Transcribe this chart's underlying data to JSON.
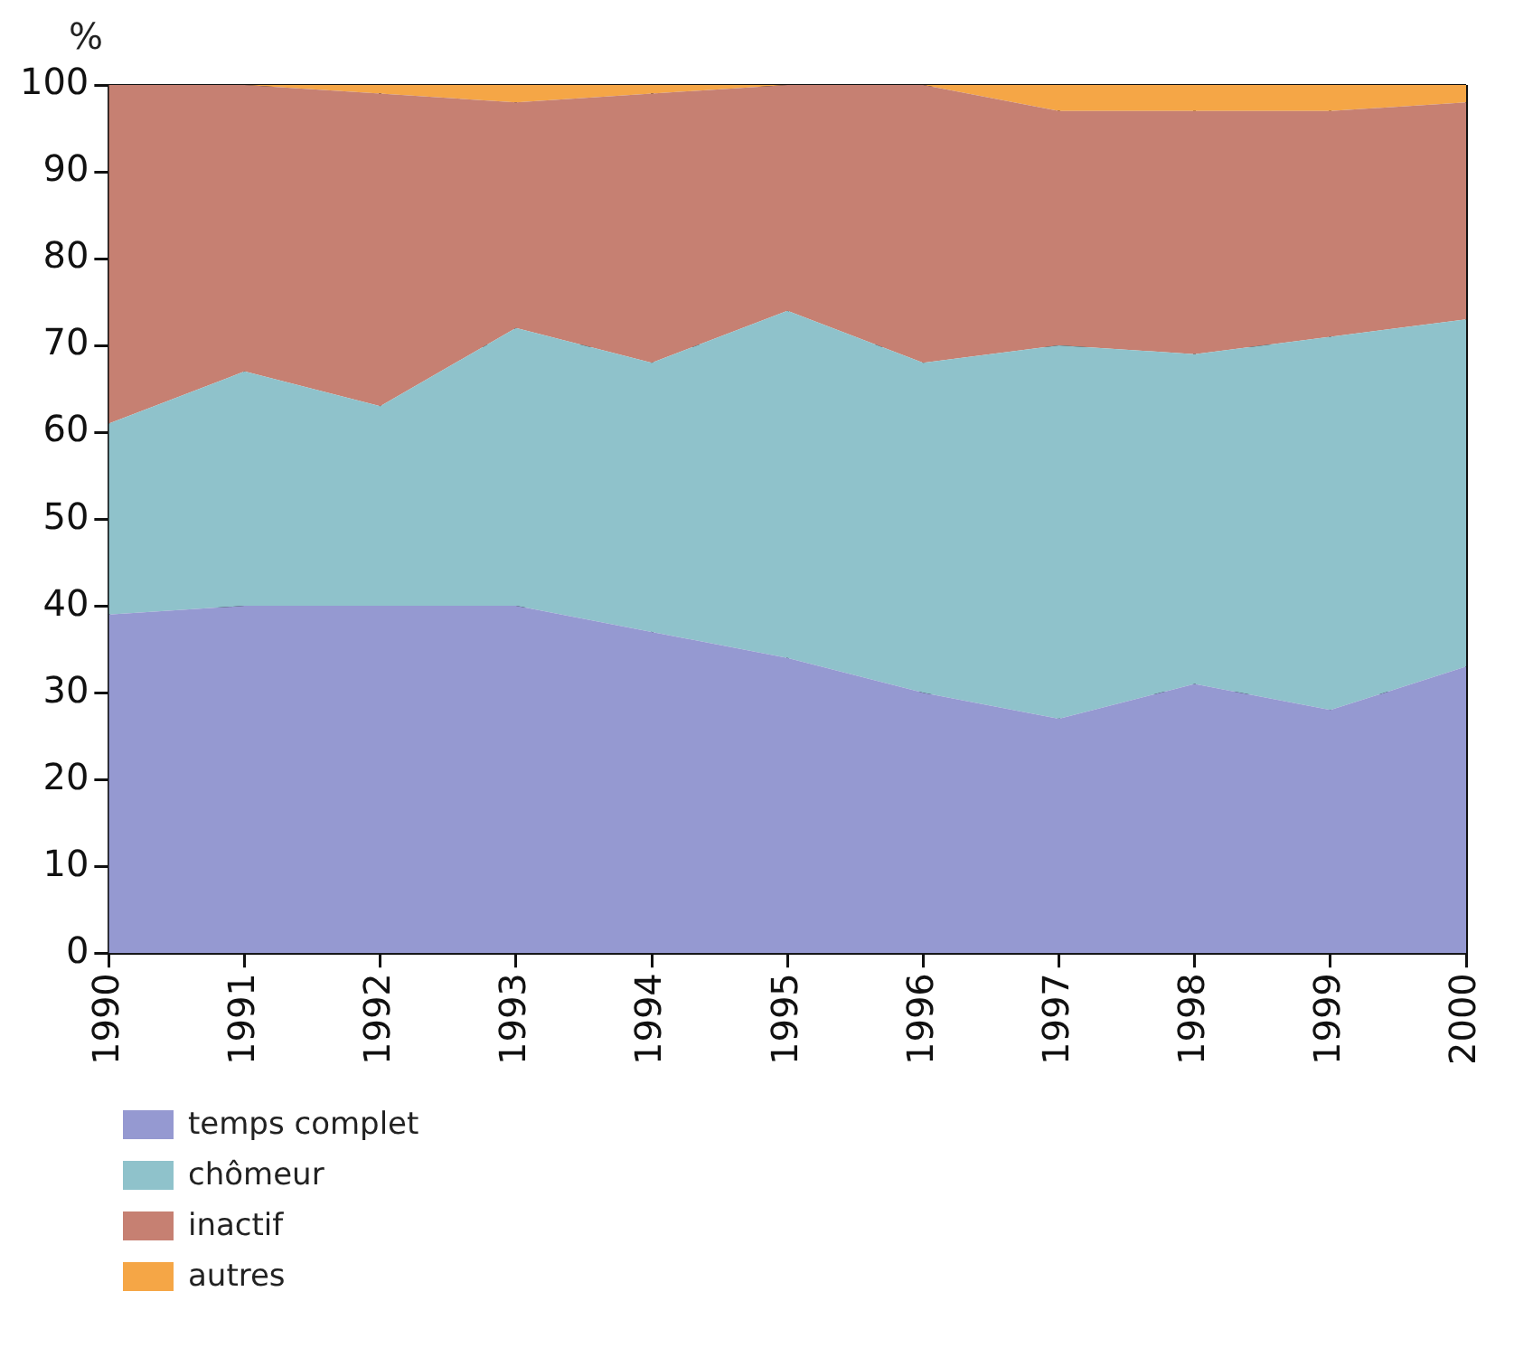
{
  "chart_data": {
    "type": "area",
    "stacked": true,
    "ylabel": "%",
    "categories": [
      "1990",
      "1991",
      "1992",
      "1993",
      "1994",
      "1995",
      "1996",
      "1997",
      "1998",
      "1999",
      "2000"
    ],
    "series": [
      {
        "name": "temps complet",
        "color": "#9599d1",
        "values": [
          39,
          40,
          40,
          40,
          37,
          34,
          30,
          27,
          31,
          28,
          33
        ]
      },
      {
        "name": "chômeur",
        "color": "#8fc2cb",
        "values": [
          22,
          27,
          23,
          32,
          31,
          40,
          38,
          43,
          38,
          43,
          40
        ]
      },
      {
        "name": "inactif",
        "color": "#c68072",
        "values": [
          39,
          33,
          36,
          26,
          31,
          26,
          32,
          27,
          28,
          26,
          25
        ]
      },
      {
        "name": "autres",
        "color": "#f5a646",
        "values": [
          0,
          0,
          1,
          2,
          1,
          0,
          0,
          3,
          3,
          3,
          2
        ]
      }
    ],
    "ylim": [
      0,
      100
    ],
    "yticks": [
      0,
      10,
      20,
      30,
      40,
      50,
      60,
      70,
      80,
      90,
      100
    ],
    "grid": true,
    "legend": "bottom"
  }
}
